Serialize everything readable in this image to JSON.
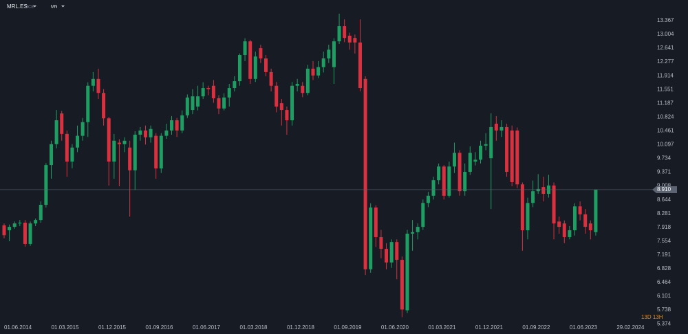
{
  "chart_data": {
    "type": "candlestick",
    "symbol": "MRL.ES",
    "exchange": "MCE",
    "timeframe": "MN",
    "countdown": "13D 13H",
    "up_color": "#1f9e63",
    "down_color": "#d9313f",
    "price_line": {
      "value": 8.91,
      "label": "8.910"
    },
    "categories": [
      "01.06.2014",
      null,
      null,
      null,
      null,
      null,
      null,
      null,
      null,
      "01.03.2015",
      null,
      null,
      null,
      null,
      null,
      null,
      null,
      null,
      "01.12.2015",
      null,
      null,
      null,
      null,
      null,
      null,
      null,
      null,
      "01.09.2016",
      null,
      null,
      null,
      null,
      null,
      null,
      null,
      null,
      "01.06.2017",
      null,
      null,
      null,
      null,
      null,
      null,
      null,
      null,
      "01.03.2018",
      null,
      null,
      null,
      null,
      null,
      null,
      null,
      null,
      "01.12.2018",
      null,
      null,
      null,
      null,
      null,
      null,
      null,
      null,
      "01.09.2019",
      null,
      null,
      null,
      null,
      null,
      null,
      null,
      null,
      "01.06.2020",
      null,
      null,
      null,
      null,
      null,
      null,
      null,
      null,
      "01.03.2021",
      null,
      null,
      null,
      null,
      null,
      null,
      null,
      null,
      "01.12.2021",
      null,
      null,
      null,
      null,
      null,
      null,
      null,
      null,
      "01.09.2022",
      null,
      null,
      null,
      null,
      null,
      null,
      null,
      null,
      "01.06.2023",
      null,
      null,
      null,
      null,
      null,
      null,
      null,
      null,
      "29.02.2024"
    ],
    "open": [
      7.97,
      7.84,
      7.93,
      8.02,
      8.04,
      7.48,
      8.02,
      8.11,
      8.51,
      9.56,
      10.11,
      10.92,
      10.38,
      9.65,
      10.02,
      10.33,
      10.69,
      11.65,
      11.83,
      11.46,
      10.79,
      9.65,
      10.15,
      10.11,
      10.02,
      9.42,
      10.36,
      10.47,
      10.29,
      10.33,
      9.47,
      10.33,
      10.47,
      10.74,
      10.47,
      10.87,
      11.01,
      11.1,
      11.37,
      11.59,
      11.65,
      11.32,
      11.05,
      11.34,
      11.59,
      11.77,
      12.46,
      12.82,
      11.83,
      12.64,
      12.37,
      12.01,
      11.65,
      11.19,
      11.01,
      10.74,
      11.65,
      11.65,
      11.46,
      12.1,
      11.92,
      12.14,
      12.37,
      12.14,
      12.82,
      13.22,
      12.97,
      12.91,
      12.79,
      11.83,
      6.81,
      8.44,
      7.66,
      7.35,
      6.99,
      7.53,
      7.06,
      5.73,
      7.75,
      7.79,
      7.93,
      8.56,
      8.75,
      9.16,
      9.52,
      8.75,
      9.52,
      9.88,
      8.87,
      9.38,
      9.65,
      9.7,
      10.07,
      9.74,
      10.65,
      10.47,
      10.56,
      10.47,
      10.47,
      9.05,
      7.84,
      8.56,
      8.87,
      8.98,
      8.8,
      9.02,
      8.07,
      8.02,
      7.66,
      7.84,
      8.47,
      8.26,
      8.02,
      7.79,
      null,
      null,
      null,
      null
    ],
    "high": [
      8.02,
      7.99,
      8.07,
      8.11,
      8.11,
      8.07,
      8.15,
      8.6,
      9.61,
      10.2,
      11.01,
      10.99,
      10.47,
      10.11,
      10.6,
      10.8,
      11.74,
      12.01,
      12.1,
      11.56,
      10.83,
      10.38,
      10.24,
      10.29,
      10.2,
      10.45,
      10.56,
      10.6,
      10.6,
      10.4,
      10.4,
      10.65,
      10.85,
      10.8,
      11.0,
      11.42,
      11.56,
      11.65,
      11.74,
      11.65,
      11.8,
      11.4,
      11.45,
      11.7,
      11.9,
      12.5,
      12.9,
      12.86,
      12.55,
      12.73,
      12.46,
      12.1,
      11.75,
      11.3,
      11.1,
      11.75,
      11.83,
      11.75,
      12.2,
      12.3,
      12.3,
      12.55,
      12.73,
      12.9,
      13.55,
      13.4,
      13.05,
      13.0,
      13.4,
      11.9,
      8.55,
      8.5,
      7.85,
      7.5,
      7.6,
      7.6,
      7.15,
      7.85,
      8.11,
      8.02,
      8.65,
      8.85,
      9.25,
      9.6,
      9.56,
      9.65,
      10.15,
      9.95,
      9.6,
      10.05,
      9.9,
      10.2,
      10.4,
      10.92,
      10.85,
      10.74,
      10.65,
      10.6,
      10.55,
      9.1,
      8.7,
      9.15,
      9.32,
      9.25,
      9.3,
      9.1,
      8.2,
      8.1,
      7.95,
      8.55,
      8.6,
      8.4,
      8.1,
      8.91,
      null,
      null,
      null,
      null
    ],
    "low": [
      7.63,
      7.55,
      7.88,
      7.95,
      7.41,
      7.43,
      7.95,
      8.04,
      8.44,
      9.2,
      10.0,
      10.2,
      9.25,
      9.47,
      9.9,
      10.2,
      10.3,
      11.5,
      11.3,
      10.6,
      9.02,
      9.2,
      9.0,
      9.9,
      8.2,
      8.9,
      10.2,
      10.1,
      10.15,
      9.2,
      9.35,
      10.25,
      10.36,
      10.3,
      10.4,
      10.8,
      10.9,
      11.0,
      11.3,
      11.4,
      11.2,
      10.9,
      11.0,
      11.1,
      11.5,
      11.65,
      12.3,
      11.7,
      11.75,
      12.25,
      11.9,
      11.5,
      10.95,
      10.6,
      10.36,
      10.6,
      11.5,
      11.35,
      11.4,
      11.8,
      11.85,
      12.0,
      12.25,
      11.7,
      12.75,
      12.8,
      12.6,
      12.5,
      11.5,
      6.66,
      6.72,
      7.4,
      7.1,
      6.81,
      6.85,
      6.55,
      5.55,
      5.66,
      7.3,
      7.6,
      7.85,
      8.45,
      8.65,
      9.05,
      8.65,
      8.7,
      9.35,
      8.75,
      8.75,
      9.3,
      9.55,
      9.6,
      9.95,
      8.4,
      10.2,
      10.3,
      9.25,
      9.0,
      8.95,
      7.3,
      7.6,
      8.45,
      8.8,
      8.6,
      8.7,
      7.6,
      7.75,
      7.5,
      7.6,
      7.7,
      8.1,
      7.75,
      7.6,
      7.7,
      null,
      null,
      null,
      null
    ],
    "close": [
      7.71,
      7.93,
      8.02,
      8.04,
      7.48,
      8.02,
      8.11,
      8.51,
      9.56,
      10.11,
      10.74,
      10.38,
      9.65,
      10.02,
      10.33,
      10.69,
      11.65,
      11.83,
      11.46,
      10.79,
      9.65,
      10.2,
      10.11,
      10.2,
      9.42,
      10.36,
      10.47,
      10.29,
      10.51,
      9.47,
      10.33,
      10.47,
      10.74,
      10.47,
      10.87,
      11.34,
      11.37,
      11.37,
      11.59,
      11.56,
      11.32,
      11.05,
      11.34,
      11.59,
      11.77,
      12.46,
      12.82,
      11.83,
      12.42,
      12.37,
      12.01,
      11.65,
      11.1,
      11.01,
      10.74,
      11.65,
      11.7,
      11.46,
      12.1,
      11.92,
      12.14,
      12.37,
      12.6,
      12.82,
      13.22,
      12.91,
      12.79,
      12.79,
      11.59,
      6.81,
      8.44,
      7.66,
      7.35,
      6.99,
      7.53,
      7.06,
      5.75,
      7.75,
      7.79,
      7.93,
      8.56,
      8.75,
      9.16,
      9.52,
      8.75,
      9.52,
      9.88,
      8.87,
      9.38,
      9.88,
      9.7,
      10.07,
      10.11,
      10.56,
      10.47,
      10.56,
      9.38,
      9.11,
      9.05,
      7.84,
      8.56,
      8.87,
      8.93,
      8.8,
      9.02,
      8.02,
      7.93,
      7.66,
      7.84,
      8.47,
      8.26,
      7.93,
      7.84,
      8.91,
      null,
      null,
      null,
      null
    ],
    "ylim": [
      5.54,
      13.91
    ],
    "yticks": [
      13.367,
      13.004,
      12.641,
      12.277,
      11.914,
      11.551,
      11.187,
      10.824,
      10.461,
      10.097,
      9.734,
      9.371,
      9.008,
      8.644,
      8.281,
      7.918,
      7.554,
      7.191,
      6.828,
      6.464,
      6.101,
      5.738,
      5.374
    ],
    "grid": false
  }
}
